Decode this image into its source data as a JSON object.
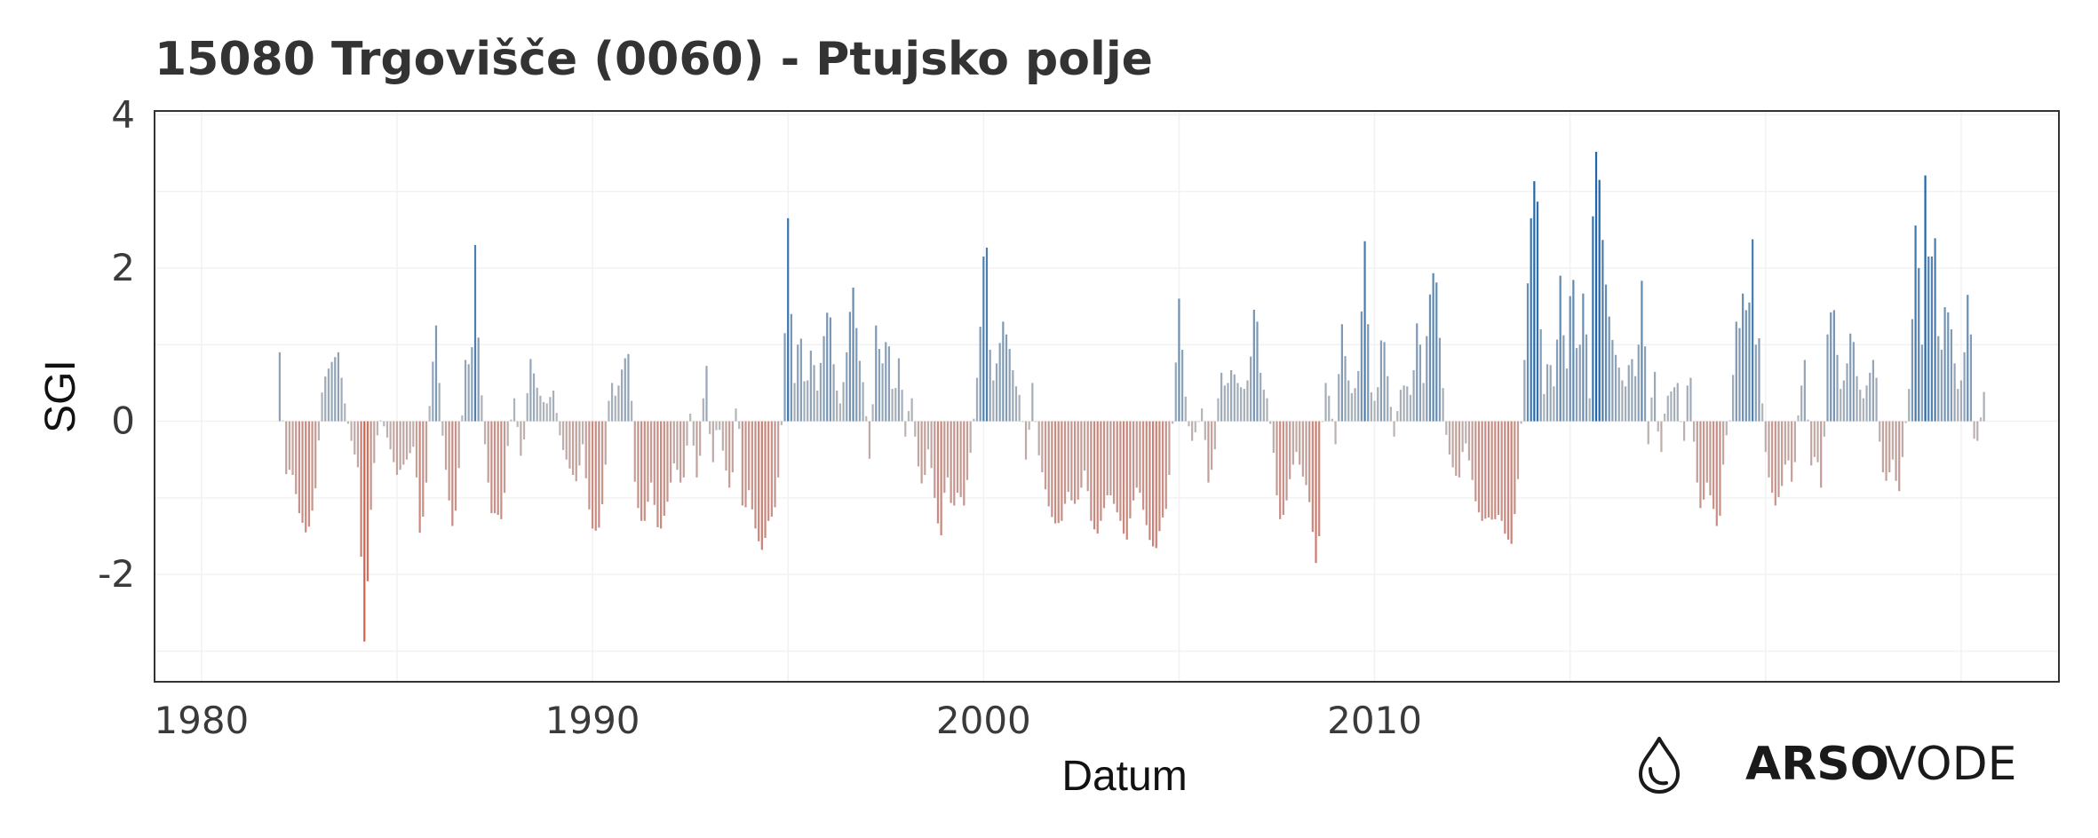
{
  "chart_data": {
    "type": "bar",
    "title": "15080 Trgovišče (0060) - Ptujsko polje",
    "xlabel": "Datum",
    "ylabel": "SGI",
    "xlim": [
      1978.8,
      2027.5
    ],
    "ylim": [
      -3.4,
      4.05
    ],
    "x_ticks": [
      1980,
      1990,
      2000,
      2010
    ],
    "x_tick_labels": [
      "1980",
      "1990",
      "2000",
      "2010"
    ],
    "y_ticks": [
      4,
      2,
      0,
      -2
    ],
    "y_tick_labels": [
      "4",
      "2",
      "0",
      "-2"
    ],
    "grid": true,
    "legend": "none",
    "colors": {
      "positive": "#2166ac",
      "negative": "#d6604d",
      "neutral": "#bababa"
    },
    "anchors": [
      [
        1982.0,
        0.9
      ],
      [
        1982.15,
        -0.7
      ],
      [
        1982.3,
        -0.6
      ],
      [
        1982.5,
        -1.2
      ],
      [
        1982.7,
        -1.5
      ],
      [
        1982.9,
        -1.0
      ],
      [
        1983.1,
        0.5
      ],
      [
        1983.3,
        0.75
      ],
      [
        1983.5,
        0.9
      ],
      [
        1983.7,
        0.1
      ],
      [
        1983.85,
        -0.3
      ],
      [
        1984.0,
        -0.6
      ],
      [
        1984.1,
        -2.0
      ],
      [
        1984.18,
        -3.05
      ],
      [
        1984.3,
        -1.4
      ],
      [
        1984.45,
        -0.3
      ],
      [
        1984.6,
        0.05
      ],
      [
        1984.8,
        -0.3
      ],
      [
        1985.0,
        -0.7
      ],
      [
        1985.25,
        -0.5
      ],
      [
        1985.45,
        -0.3
      ],
      [
        1985.6,
        -1.6
      ],
      [
        1985.75,
        -0.8
      ],
      [
        1985.85,
        0.4
      ],
      [
        1986.0,
        1.25
      ],
      [
        1986.15,
        -0.1
      ],
      [
        1986.3,
        -0.9
      ],
      [
        1986.45,
        -1.5
      ],
      [
        1986.6,
        -0.5
      ],
      [
        1986.75,
        0.8
      ],
      [
        1986.9,
        0.7
      ],
      [
        1987.0,
        2.3
      ],
      [
        1987.1,
        0.85
      ],
      [
        1987.25,
        -0.3
      ],
      [
        1987.4,
        -1.2
      ],
      [
        1987.55,
        -1.2
      ],
      [
        1987.7,
        -1.3
      ],
      [
        1987.85,
        -0.2
      ],
      [
        1988.0,
        0.3
      ],
      [
        1988.2,
        -0.6
      ],
      [
        1988.4,
        0.85
      ],
      [
        1988.6,
        0.4
      ],
      [
        1988.8,
        0.2
      ],
      [
        1989.0,
        0.4
      ],
      [
        1989.2,
        -0.3
      ],
      [
        1989.4,
        -0.6
      ],
      [
        1989.6,
        -0.8
      ],
      [
        1989.75,
        -0.3
      ],
      [
        1989.9,
        -1.1
      ],
      [
        1990.0,
        -1.4
      ],
      [
        1990.15,
        -1.45
      ],
      [
        1990.3,
        -0.9
      ],
      [
        1990.45,
        0.6
      ],
      [
        1990.6,
        0.3
      ],
      [
        1990.8,
        0.8
      ],
      [
        1990.95,
        0.9
      ],
      [
        1991.1,
        -1.0
      ],
      [
        1991.3,
        -1.4
      ],
      [
        1991.5,
        -0.8
      ],
      [
        1991.7,
        -1.5
      ],
      [
        1991.9,
        -1.1
      ],
      [
        1992.1,
        -0.5
      ],
      [
        1992.3,
        -0.9
      ],
      [
        1992.5,
        0.1
      ],
      [
        1992.7,
        -0.9
      ],
      [
        1992.9,
        0.9
      ],
      [
        1993.05,
        -0.7
      ],
      [
        1993.2,
        0.05
      ],
      [
        1993.4,
        -0.6
      ],
      [
        1993.55,
        -1.0
      ],
      [
        1993.7,
        0.5
      ],
      [
        1993.85,
        -1.3
      ],
      [
        1994.0,
        -0.9
      ],
      [
        1994.2,
        -1.5
      ],
      [
        1994.35,
        -1.7
      ],
      [
        1994.5,
        -1.3
      ],
      [
        1994.65,
        -1.2
      ],
      [
        1994.8,
        -0.5
      ],
      [
        1994.9,
        0.85
      ],
      [
        1995.0,
        2.65
      ],
      [
        1995.15,
        0.4
      ],
      [
        1995.3,
        1.3
      ],
      [
        1995.45,
        0.3
      ],
      [
        1995.6,
        1.0
      ],
      [
        1995.75,
        0.4
      ],
      [
        1995.9,
        1.05
      ],
      [
        1996.05,
        1.6
      ],
      [
        1996.2,
        0.5
      ],
      [
        1996.35,
        0.2
      ],
      [
        1996.5,
        0.9
      ],
      [
        1996.65,
        1.85
      ],
      [
        1996.8,
        0.9
      ],
      [
        1996.95,
        0.4
      ],
      [
        1997.1,
        -0.6
      ],
      [
        1997.25,
        1.25
      ],
      [
        1997.4,
        0.7
      ],
      [
        1997.55,
        1.2
      ],
      [
        1997.7,
        0.2
      ],
      [
        1997.85,
        0.9
      ],
      [
        1998.0,
        -0.2
      ],
      [
        1998.15,
        0.4
      ],
      [
        1998.3,
        -0.5
      ],
      [
        1998.45,
        -0.9
      ],
      [
        1998.6,
        -0.3
      ],
      [
        1998.75,
        -1.0
      ],
      [
        1998.9,
        -1.6
      ],
      [
        1999.05,
        -0.6
      ],
      [
        1999.2,
        -1.2
      ],
      [
        1999.35,
        -0.9
      ],
      [
        1999.5,
        -1.1
      ],
      [
        1999.65,
        -0.5
      ],
      [
        1999.8,
        0.3
      ],
      [
        1999.95,
        1.5
      ],
      [
        2000.05,
        2.8
      ],
      [
        2000.2,
        0.4
      ],
      [
        2000.35,
        0.8
      ],
      [
        2000.5,
        1.3
      ],
      [
        2000.65,
        1.0
      ],
      [
        2000.8,
        0.5
      ],
      [
        2000.95,
        0.3
      ],
      [
        2001.1,
        -0.6
      ],
      [
        2001.25,
        0.5
      ],
      [
        2001.4,
        -0.4
      ],
      [
        2001.55,
        -0.8
      ],
      [
        2001.7,
        -1.2
      ],
      [
        2001.85,
        -1.35
      ],
      [
        2002.0,
        -1.3
      ],
      [
        2002.15,
        -0.9
      ],
      [
        2002.3,
        -1.1
      ],
      [
        2002.45,
        -1.0
      ],
      [
        2002.6,
        -0.6
      ],
      [
        2002.75,
        -1.3
      ],
      [
        2002.9,
        -1.5
      ],
      [
        2003.05,
        -1.2
      ],
      [
        2003.2,
        -0.9
      ],
      [
        2003.35,
        -1.1
      ],
      [
        2003.5,
        -1.3
      ],
      [
        2003.65,
        -1.6
      ],
      [
        2003.8,
        -1.1
      ],
      [
        2003.95,
        -0.8
      ],
      [
        2004.1,
        -1.2
      ],
      [
        2004.25,
        -1.55
      ],
      [
        2004.4,
        -1.7
      ],
      [
        2004.55,
        -1.3
      ],
      [
        2004.7,
        -1.1
      ],
      [
        2004.85,
        0.1
      ],
      [
        2005.0,
        1.6
      ],
      [
        2005.15,
        0.4
      ],
      [
        2005.3,
        -0.3
      ],
      [
        2005.45,
        -0.1
      ],
      [
        2005.6,
        0.2
      ],
      [
        2005.75,
        -0.8
      ],
      [
        2005.9,
        -0.5
      ],
      [
        2006.05,
        0.7
      ],
      [
        2006.2,
        0.4
      ],
      [
        2006.35,
        0.7
      ],
      [
        2006.5,
        0.5
      ],
      [
        2006.65,
        0.4
      ],
      [
        2006.8,
        0.6
      ],
      [
        2006.95,
        1.7
      ],
      [
        2007.1,
        0.5
      ],
      [
        2007.25,
        0.3
      ],
      [
        2007.4,
        -0.3
      ],
      [
        2007.55,
        -1.3
      ],
      [
        2007.7,
        -1.2
      ],
      [
        2007.85,
        -0.7
      ],
      [
        2008.0,
        -0.4
      ],
      [
        2008.15,
        -0.7
      ],
      [
        2008.3,
        -0.9
      ],
      [
        2008.45,
        -1.6
      ],
      [
        2008.55,
        -2.1
      ],
      [
        2008.7,
        0.6
      ],
      [
        2008.85,
        0.3
      ],
      [
        2009.0,
        -0.3
      ],
      [
        2009.15,
        1.35
      ],
      [
        2009.3,
        0.6
      ],
      [
        2009.45,
        0.3
      ],
      [
        2009.6,
        0.7
      ],
      [
        2009.75,
        2.35
      ],
      [
        2009.9,
        0.4
      ],
      [
        2010.05,
        0.2
      ],
      [
        2010.2,
        1.3
      ],
      [
        2010.35,
        0.5
      ],
      [
        2010.5,
        -0.2
      ],
      [
        2010.65,
        0.4
      ],
      [
        2010.8,
        0.5
      ],
      [
        2010.95,
        0.3
      ],
      [
        2011.1,
        1.4
      ],
      [
        2011.25,
        0.5
      ],
      [
        2011.4,
        1.6
      ],
      [
        2011.55,
        2.1
      ],
      [
        2011.7,
        0.8
      ],
      [
        2011.85,
        -0.3
      ],
      [
        2012.0,
        -0.6
      ],
      [
        2012.15,
        -0.8
      ],
      [
        2012.3,
        -0.2
      ],
      [
        2012.45,
        -0.6
      ],
      [
        2012.6,
        -1.1
      ],
      [
        2012.75,
        -1.3
      ],
      [
        2012.9,
        -1.25
      ],
      [
        2013.05,
        -1.3
      ],
      [
        2013.2,
        -1.2
      ],
      [
        2013.35,
        -1.5
      ],
      [
        2013.5,
        -1.6
      ],
      [
        2013.65,
        -0.9
      ],
      [
        2013.8,
        0.4
      ],
      [
        2013.95,
        2.2
      ],
      [
        2014.05,
        3.1
      ],
      [
        2014.15,
        3.2
      ],
      [
        2014.3,
        0.2
      ],
      [
        2014.45,
        0.9
      ],
      [
        2014.6,
        0.4
      ],
      [
        2014.75,
        1.9
      ],
      [
        2014.9,
        0.5
      ],
      [
        2015.05,
        2.2
      ],
      [
        2015.2,
        0.6
      ],
      [
        2015.35,
        1.8
      ],
      [
        2015.5,
        0.3
      ],
      [
        2015.6,
        3.15
      ],
      [
        2015.7,
        3.7
      ],
      [
        2015.8,
        2.6
      ],
      [
        2015.95,
        1.55
      ],
      [
        2016.1,
        1.0
      ],
      [
        2016.25,
        0.7
      ],
      [
        2016.4,
        0.4
      ],
      [
        2016.55,
        0.9
      ],
      [
        2016.7,
        0.5
      ],
      [
        2016.85,
        2.0
      ],
      [
        2017.0,
        -0.3
      ],
      [
        2017.15,
        0.8
      ],
      [
        2017.3,
        -0.6
      ],
      [
        2017.45,
        0.3
      ],
      [
        2017.6,
        0.4
      ],
      [
        2017.75,
        0.5
      ],
      [
        2017.9,
        -0.4
      ],
      [
        2018.05,
        0.9
      ],
      [
        2018.2,
        -0.6
      ],
      [
        2018.35,
        -1.2
      ],
      [
        2018.5,
        -0.8
      ],
      [
        2018.65,
        -1.1
      ],
      [
        2018.8,
        -1.5
      ],
      [
        2018.95,
        -0.3
      ],
      [
        2019.1,
        0.05
      ],
      [
        2019.25,
        1.3
      ],
      [
        2019.35,
        1.2
      ],
      [
        2019.45,
        1.9
      ],
      [
        2019.55,
        1.0
      ],
      [
        2019.65,
        2.65
      ],
      [
        2019.75,
        1.0
      ],
      [
        2019.85,
        1.1
      ],
      [
        2019.95,
        -0.2
      ],
      [
        2020.1,
        -0.8
      ],
      [
        2020.25,
        -1.1
      ],
      [
        2020.4,
        -0.9
      ],
      [
        2020.55,
        -0.4
      ],
      [
        2020.7,
        -0.9
      ],
      [
        2020.85,
        0.2
      ],
      [
        2021.0,
        0.8
      ],
      [
        2021.15,
        -0.6
      ],
      [
        2021.3,
        -0.4
      ],
      [
        2021.45,
        -1.0
      ],
      [
        2021.6,
        1.4
      ],
      [
        2021.75,
        1.45
      ],
      [
        2021.9,
        0.4
      ],
      [
        2022.05,
        0.6
      ],
      [
        2022.2,
        1.3
      ],
      [
        2022.35,
        0.5
      ],
      [
        2022.5,
        0.3
      ],
      [
        2022.65,
        0.6
      ],
      [
        2022.8,
        0.9
      ],
      [
        2022.95,
        -0.6
      ],
      [
        2023.1,
        -0.8
      ],
      [
        2023.25,
        -0.5
      ],
      [
        2023.4,
        -1.0
      ],
      [
        2023.55,
        -0.2
      ],
      [
        2023.7,
        0.6
      ],
      [
        2023.85,
        2.8
      ],
      [
        2024.0,
        1.0
      ],
      [
        2024.1,
        3.65
      ],
      [
        2024.2,
        1.4
      ],
      [
        2024.3,
        2.9
      ],
      [
        2024.45,
        0.6
      ],
      [
        2024.6,
        1.6
      ],
      [
        2024.75,
        1.2
      ],
      [
        2024.9,
        0.4
      ],
      [
        2025.05,
        0.6
      ],
      [
        2025.2,
        1.95
      ],
      [
        2025.35,
        -0.5
      ],
      [
        2025.5,
        0.05
      ],
      [
        2025.6,
        0.45
      ]
    ]
  },
  "logo": {
    "icon": "water-drop-icon",
    "word_bold": "ARSO",
    "word_light": "VODE"
  }
}
